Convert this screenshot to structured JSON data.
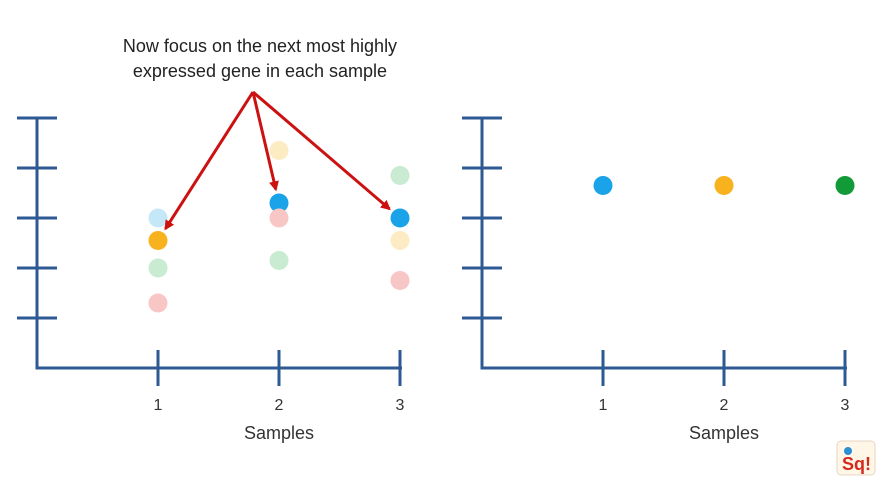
{
  "annotation": {
    "line1": "Now focus on the next most highly",
    "line2": "expressed gene in each sample"
  },
  "colors": {
    "axis": "#2e5a94",
    "arrow": "#cc1111",
    "blue": "#1aa3e8",
    "orange": "#f7b21e",
    "green": "#139a38",
    "faded_blue": "#c5e8f8",
    "faded_orange": "#fdebc3",
    "faded_green": "#c8ebd1",
    "faded_red": "#f9c6c6"
  },
  "chart_data": [
    {
      "type": "scatter",
      "title": "",
      "xlabel": "Samples",
      "ylabel": "",
      "categories": [
        "1",
        "2",
        "3"
      ],
      "xlim": [
        0,
        3
      ],
      "ylim": [
        0,
        5
      ],
      "grid": false,
      "points": [
        {
          "x": 1,
          "y": 3.0,
          "color": "faded_blue",
          "highlight": false
        },
        {
          "x": 1,
          "y": 2.55,
          "color": "orange",
          "highlight": true
        },
        {
          "x": 1,
          "y": 2.0,
          "color": "faded_green",
          "highlight": false
        },
        {
          "x": 1,
          "y": 1.3,
          "color": "faded_red",
          "highlight": false
        },
        {
          "x": 2,
          "y": 4.35,
          "color": "faded_orange",
          "highlight": false
        },
        {
          "x": 2,
          "y": 3.3,
          "color": "blue",
          "highlight": true
        },
        {
          "x": 2,
          "y": 3.0,
          "color": "faded_red",
          "highlight": false
        },
        {
          "x": 2,
          "y": 2.15,
          "color": "faded_green",
          "highlight": false
        },
        {
          "x": 3,
          "y": 3.85,
          "color": "faded_green",
          "highlight": false
        },
        {
          "x": 3,
          "y": 3.0,
          "color": "blue",
          "highlight": true
        },
        {
          "x": 3,
          "y": 2.55,
          "color": "faded_orange",
          "highlight": false
        },
        {
          "x": 3,
          "y": 1.75,
          "color": "faded_red",
          "highlight": false
        }
      ]
    },
    {
      "type": "scatter",
      "title": "",
      "xlabel": "Samples",
      "ylabel": "",
      "categories": [
        "1",
        "2",
        "3"
      ],
      "xlim": [
        0,
        3
      ],
      "ylim": [
        0,
        5
      ],
      "grid": false,
      "points": [
        {
          "x": 1,
          "y": 3.65,
          "color": "blue",
          "highlight": true
        },
        {
          "x": 2,
          "y": 3.65,
          "color": "orange",
          "highlight": true
        },
        {
          "x": 3,
          "y": 3.65,
          "color": "green",
          "highlight": true
        }
      ]
    }
  ],
  "arrows": [
    {
      "chart": 0,
      "target_point": 1
    },
    {
      "chart": 0,
      "target_point": 5
    },
    {
      "chart": 0,
      "target_point": 9
    }
  ],
  "logo_icon": "statquest-logo-icon",
  "logo_text": "Sq!"
}
